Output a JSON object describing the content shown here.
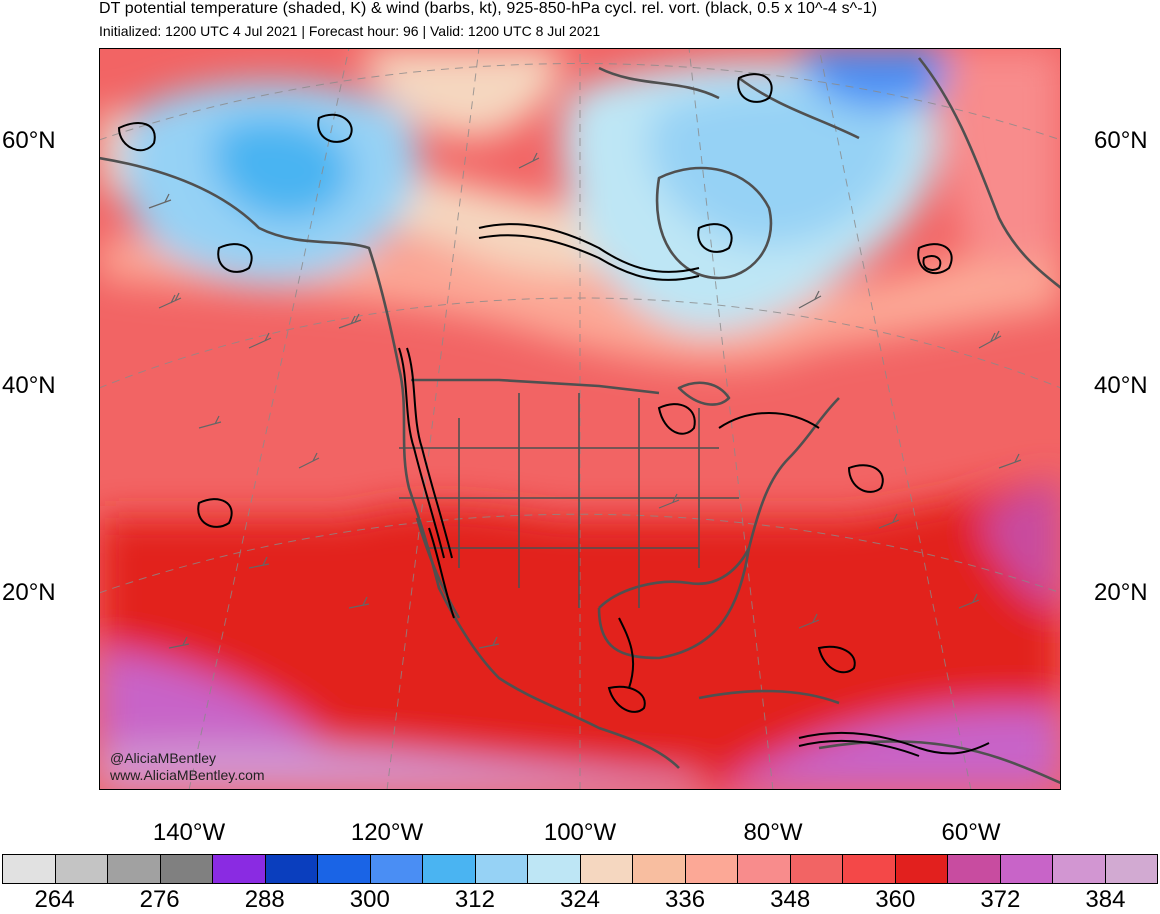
{
  "header": {
    "title": "DT potential temperature (shaded, K) & wind (barbs, kt), 925-850-hPa cycl. rel. vort. (black, 0.5 x 10^-4 s^-1)",
    "subtitle": "Initialized: 1200 UTC 4 Jul 2021 | Forecast hour: 96 | Valid: 1200 UTC 8 Jul 2021"
  },
  "map": {
    "lat_labels": [
      "60°N",
      "40°N",
      "20°N"
    ],
    "lon_labels": [
      "140°W",
      "120°W",
      "100°W",
      "80°W",
      "60°W"
    ],
    "land_outline_color": "#505050",
    "vorticity_color": "#000000"
  },
  "credit": {
    "handle": "@AliciaMBentley",
    "website": "www.AliciaMBentley.com"
  },
  "colorbar": {
    "colors": [
      "#e1e1e1",
      "#c4c4c4",
      "#a1a1a1",
      "#808080",
      "#8a2be2",
      "#0a3ebe",
      "#1a64e6",
      "#4a8ef4",
      "#4ab4f2",
      "#96d2f5",
      "#bee6f5",
      "#f5d7c0",
      "#f8bea0",
      "#fca896",
      "#f88c8c",
      "#f26464",
      "#f44848",
      "#e2201e",
      "#c84ca0",
      "#c864c8",
      "#d296d2",
      "#d2aad2"
    ],
    "tick_labels": [
      "264",
      "276",
      "288",
      "300",
      "312",
      "324",
      "336",
      "348",
      "360",
      "372",
      "384"
    ],
    "units": "K"
  }
}
